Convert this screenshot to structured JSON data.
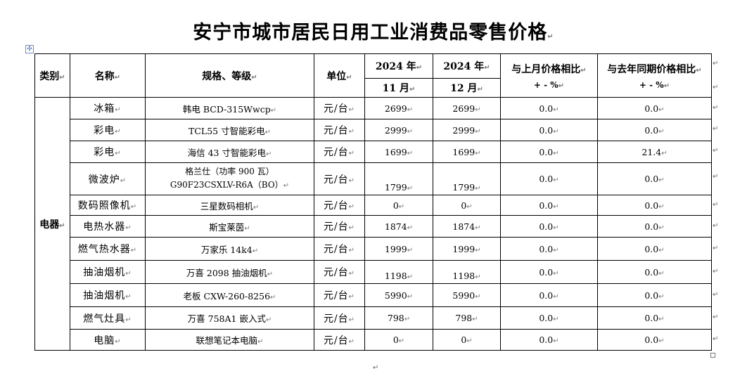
{
  "title": "安宁市城市居民日用工业消费品零售价格",
  "return_mark": "↵",
  "headers": {
    "category": "类别",
    "name": "名称",
    "spec": "规格、等级",
    "unit": "单位",
    "year_nov": "2024 年",
    "year_dec": "2024 年",
    "month_nov": "11 月",
    "month_dec": "12 月",
    "mom": "与上月价格相比",
    "yoy": "与去年同期价格相比",
    "pct": "+ - %"
  },
  "category": "电器",
  "rows": [
    {
      "name": "冰箱",
      "spec": "韩电 BCD-315Wwcp",
      "unit": "元/台",
      "nov": "2699",
      "dec": "2699",
      "mom": "0.0",
      "yoy": "0.0"
    },
    {
      "name": "彩电",
      "spec": "TCL55 寸智能彩电",
      "unit": "元/台",
      "nov": "2999",
      "dec": "2999",
      "mom": "0.0",
      "yoy": "0.0"
    },
    {
      "name": "彩电",
      "spec": "海信 43 寸智能彩电",
      "unit": "元/台",
      "nov": "1699",
      "dec": "1699",
      "mom": "0.0",
      "yoy": "21.4"
    },
    {
      "name": "微波炉",
      "spec_line1": "格兰仕（功率 900 瓦）",
      "spec_line2": "G90F23CSXLV-R6A（BO）",
      "unit": "元/台",
      "nov": "1799",
      "dec": "1799",
      "mom": "0.0",
      "yoy": "0.0"
    },
    {
      "name": "数码照像机",
      "spec": "三星数码相机",
      "unit": "元/台",
      "nov": "0",
      "dec": "0",
      "mom": "0.0",
      "yoy": "0.0"
    },
    {
      "name": "电热水器",
      "spec": "斯宝莱茵",
      "unit": "元/台",
      "nov": "1874",
      "dec": "1874",
      "mom": "0.0",
      "yoy": "0.0"
    },
    {
      "name": "燃气热水器",
      "spec": "万家乐 14k4",
      "unit": "元/台",
      "nov": "1999",
      "dec": "1999",
      "mom": "0.0",
      "yoy": "0.0"
    },
    {
      "name": "抽油烟机",
      "spec": "万喜 2098 抽油烟机",
      "unit": "元/台",
      "nov": "1198",
      "dec": "1198",
      "mom": "0.0",
      "yoy": "0.0"
    },
    {
      "name": "抽油烟机",
      "spec": "老板 CXW-260-8256",
      "unit": "元/台",
      "nov": "5990",
      "dec": "5990",
      "mom": "0.0",
      "yoy": "0.0"
    },
    {
      "name": "燃气灶具",
      "spec": "万喜 758A1 嵌入式",
      "unit": "元/台",
      "nov": "798",
      "dec": "798",
      "mom": "0.0",
      "yoy": "0.0"
    },
    {
      "name": "电脑",
      "spec": "联想笔记本电脑",
      "unit": "元/台",
      "nov": "0",
      "dec": "0",
      "mom": "0.0",
      "yoy": "0.0"
    }
  ]
}
